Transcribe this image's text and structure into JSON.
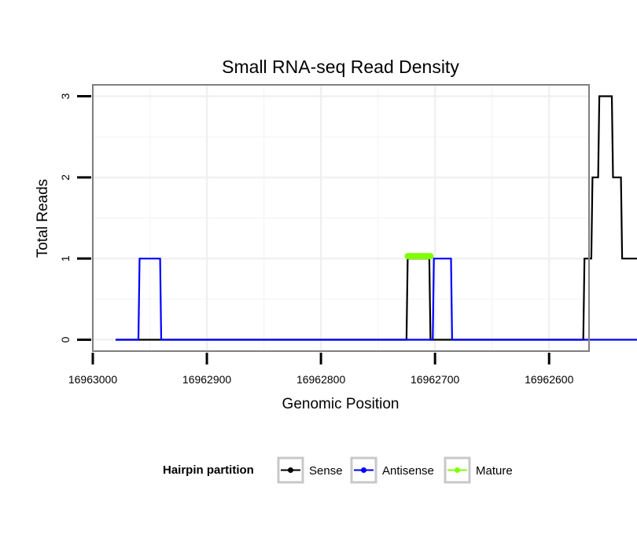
{
  "chart_data": {
    "type": "line",
    "title": "Small RNA-seq Read Density",
    "xlabel": "Genomic Position",
    "ylabel": "Total Reads",
    "x_reversed": true,
    "xlim": [
      16963000,
      16962565
    ],
    "ylim": [
      -0.14,
      3.14
    ],
    "x_ticks": [
      16963000,
      16962900,
      16962800,
      16962700,
      16962600
    ],
    "x_tick_labels": [
      "16963000",
      "16962900",
      "16962800",
      "16962700",
      "16962600"
    ],
    "y_ticks": [
      0,
      1,
      2,
      3
    ],
    "y_tick_labels": [
      "0",
      "1",
      "2",
      "3"
    ],
    "grid": true,
    "legend": {
      "title": "Hairpin partition",
      "position": "bottom",
      "entries": [
        {
          "label": "Sense",
          "color": "#000000"
        },
        {
          "label": "Antisense",
          "color": "#0000ff"
        },
        {
          "label": "Mature",
          "color": "#7fff00"
        }
      ]
    },
    "series": [
      {
        "name": "Sense",
        "color": "#000000",
        "x": [
          16962980,
          16962725,
          16962724,
          16962705,
          16962704,
          16962570,
          16962569,
          16962563,
          16962562,
          16962557,
          16962556,
          16962545,
          16962544,
          16962537,
          16962536,
          16962532,
          16962531,
          16962520
        ],
        "y": [
          0,
          0,
          1,
          1,
          0,
          0,
          1,
          1,
          2,
          2,
          3,
          3,
          2,
          2,
          1,
          1,
          1,
          1
        ]
      },
      {
        "name": "Antisense",
        "color": "#0000ff",
        "x": [
          16962980,
          16962960,
          16962959,
          16962941,
          16962940,
          16962702,
          16962701,
          16962686,
          16962685,
          16962520
        ],
        "y": [
          0,
          0,
          1,
          1,
          0,
          0,
          1,
          1,
          0,
          0
        ]
      },
      {
        "name": "Mature",
        "color": "#7fff00",
        "x": [
          16962724,
          16962704
        ],
        "y": [
          1.03,
          1.03
        ]
      }
    ]
  }
}
